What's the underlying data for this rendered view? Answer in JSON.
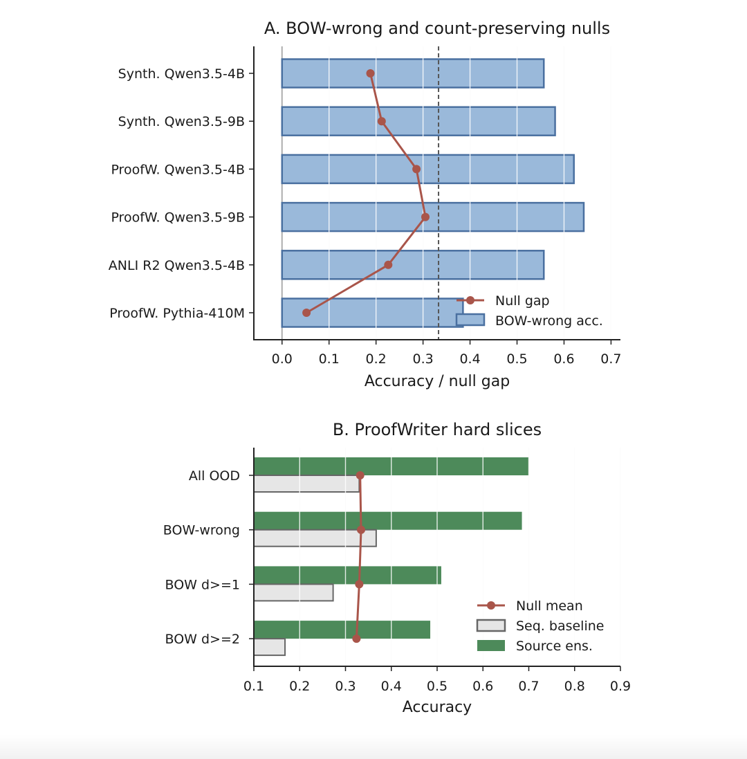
{
  "colors": {
    "bow_fill": "#9ab9da",
    "bow_edge": "#4a70a0",
    "null_line": "#a9554a",
    "source_fill": "#4d8a5a",
    "seq_fill": "#e6e6e6",
    "seq_edge": "#666666",
    "dashed": "#555555"
  },
  "chart_data": [
    {
      "type": "bar",
      "orientation": "horizontal",
      "title": "A. BOW-wrong and count-preserving nulls",
      "xlabel": "Accuracy / null gap",
      "ylabel": "",
      "xlim": [
        -0.06,
        0.72
      ],
      "xticks": [
        "0.0",
        "0.1",
        "0.2",
        "0.3",
        "0.4",
        "0.5",
        "0.6",
        "0.7"
      ],
      "grid": "vertical",
      "categories": [
        "Synth. Qwen3.5-4B",
        "Synth. Qwen3.5-9B",
        "ProofW. Qwen3.5-4B",
        "ProofW. Qwen3.5-9B",
        "ANLI R2 Qwen3.5-4B",
        "ProofW. Pythia-410M"
      ],
      "series": [
        {
          "name": "BOW-wrong acc.",
          "kind": "bar",
          "values": [
            0.557,
            0.581,
            0.621,
            0.642,
            0.557,
            0.385
          ]
        },
        {
          "name": "Null gap",
          "kind": "line",
          "values": [
            0.188,
            0.212,
            0.286,
            0.305,
            0.226,
            0.052
          ]
        }
      ],
      "reference_line": {
        "x": 0.333,
        "style": "dashed"
      },
      "legend": "lower-right"
    },
    {
      "type": "bar",
      "orientation": "horizontal",
      "title": "B. ProofWriter hard slices",
      "xlabel": "Accuracy",
      "ylabel": "",
      "xlim": [
        0.1,
        0.9
      ],
      "xticks": [
        "0.1",
        "0.2",
        "0.3",
        "0.4",
        "0.5",
        "0.6",
        "0.7",
        "0.8",
        "0.9"
      ],
      "grid": "vertical",
      "categories": [
        "All OOD",
        "BOW-wrong",
        "BOW d>=1",
        "BOW d>=2"
      ],
      "series": [
        {
          "name": "Source ens.",
          "kind": "bar",
          "values": [
            0.7,
            0.685,
            0.509,
            0.485
          ]
        },
        {
          "name": "Seq. baseline",
          "kind": "bar",
          "values": [
            0.33,
            0.367,
            0.273,
            0.168
          ]
        },
        {
          "name": "Null mean",
          "kind": "line",
          "values": [
            0.332,
            0.334,
            0.33,
            0.324
          ]
        }
      ],
      "legend": "lower-right"
    }
  ]
}
